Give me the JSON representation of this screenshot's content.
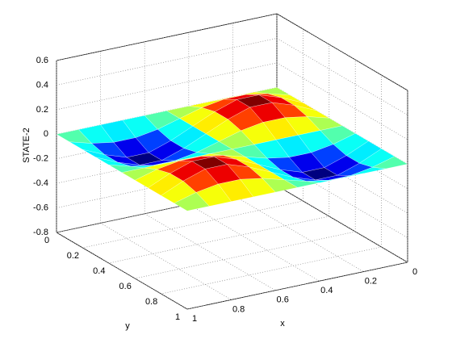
{
  "chart_data": {
    "type": "surface",
    "colormap": "jet",
    "xlabel": "x",
    "ylabel": "y",
    "zlabel": "STATE-2",
    "xlim": [
      0,
      1
    ],
    "ylim": [
      0,
      1
    ],
    "zlim": [
      -0.8,
      0.6
    ],
    "xticks": [
      0,
      0.2,
      0.4,
      0.6,
      0.8,
      1
    ],
    "yticks": [
      0,
      0.2,
      0.4,
      0.6,
      0.8,
      1
    ],
    "zticks": [
      -0.8,
      -0.6,
      -0.4,
      -0.2,
      0,
      0.2,
      0.4,
      0.6
    ],
    "grid": true,
    "x": [
      0,
      0.1,
      0.2,
      0.3,
      0.4,
      0.5,
      0.6,
      0.7,
      0.8,
      0.9,
      1
    ],
    "y": [
      0,
      0.1,
      0.2,
      0.3,
      0.4,
      0.5,
      0.6,
      0.7,
      0.8,
      0.9,
      1
    ],
    "z": [
      [
        0,
        0,
        0,
        0,
        0,
        0,
        0,
        0,
        0,
        0,
        0
      ],
      [
        0,
        0.05,
        0.08,
        0.08,
        0.05,
        0,
        -0.05,
        -0.08,
        -0.08,
        -0.05,
        0
      ],
      [
        0,
        0.08,
        0.14,
        0.14,
        0.08,
        0,
        -0.08,
        -0.14,
        -0.14,
        -0.08,
        0
      ],
      [
        0,
        0.08,
        0.14,
        0.14,
        0.08,
        0,
        -0.08,
        -0.14,
        -0.14,
        -0.08,
        0
      ],
      [
        0,
        0.05,
        0.08,
        0.08,
        0.05,
        0,
        -0.05,
        -0.08,
        -0.08,
        -0.05,
        0
      ],
      [
        0,
        0,
        0,
        0,
        0,
        0,
        0,
        0,
        0,
        0,
        0
      ],
      [
        0,
        -0.05,
        -0.08,
        -0.08,
        -0.05,
        0,
        0.05,
        0.08,
        0.08,
        0.05,
        0
      ],
      [
        0,
        -0.08,
        -0.14,
        -0.14,
        -0.08,
        0,
        0.08,
        0.14,
        0.14,
        0.08,
        0
      ],
      [
        0,
        -0.08,
        -0.14,
        -0.14,
        -0.08,
        0,
        0.08,
        0.14,
        0.14,
        0.08,
        0
      ],
      [
        0,
        -0.05,
        -0.08,
        -0.08,
        -0.05,
        0,
        0.05,
        0.08,
        0.08,
        0.05,
        0
      ],
      [
        0,
        0,
        0,
        0,
        0,
        0,
        0,
        0,
        0,
        0,
        0
      ]
    ]
  }
}
